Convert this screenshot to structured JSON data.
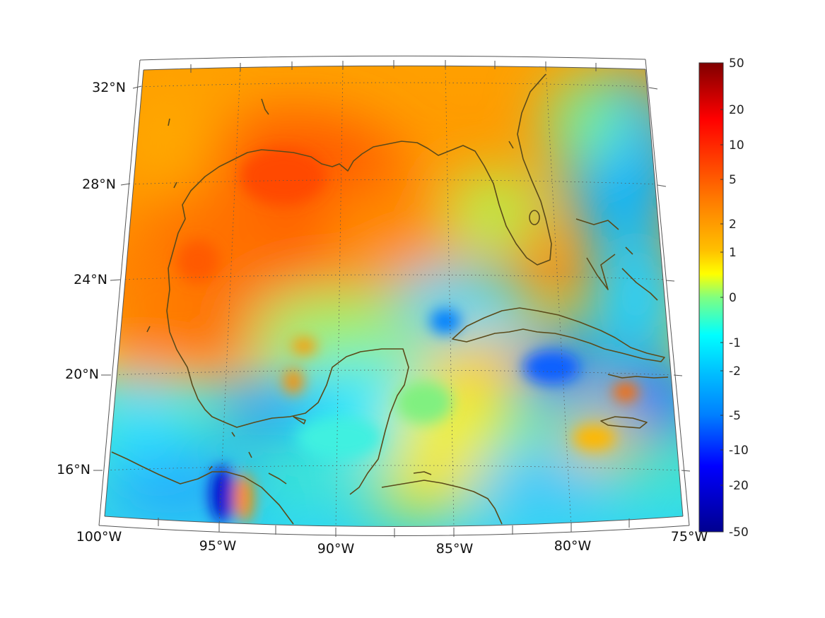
{
  "map": {
    "projection": "conic",
    "lon_range": [
      -100,
      -75
    ],
    "lat_range": [
      14,
      33
    ],
    "coastline_color": "#5b4a1a",
    "grid": "dotted",
    "lon_ticks": [
      "100°W",
      "95°W",
      "90°W",
      "85°W",
      "80°W",
      "75°W"
    ],
    "lat_ticks": [
      "32°N",
      "28°N",
      "24°N",
      "20°N",
      "16°N"
    ],
    "regions_shown": [
      "Gulf of Mexico",
      "Florida",
      "Yucatán Peninsula",
      "Cuba",
      "Bahamas",
      "Jamaica",
      "Central America"
    ]
  },
  "colorbar": {
    "colormap": "jet",
    "ticks": [
      "50",
      "20",
      "10",
      "5",
      "2",
      "1",
      "0",
      "-1",
      "-2",
      "-5",
      "-10",
      "-20",
      "-50"
    ],
    "colors": [
      "#7f0000",
      "#ff0000",
      "#ff8000",
      "#ffff00",
      "#80ff80",
      "#00ffff",
      "#0080ff",
      "#0000ff",
      "#00008f"
    ]
  },
  "chart_data": {
    "type": "heatmap",
    "title": "",
    "xlabel": "",
    "ylabel": "",
    "x_ticks": [
      "100°W",
      "95°W",
      "90°W",
      "85°W",
      "80°W",
      "75°W"
    ],
    "y_ticks": [
      "32°N",
      "28°N",
      "24°N",
      "20°N",
      "16°N"
    ],
    "colorbar_ticks": [
      50,
      20,
      10,
      5,
      2,
      1,
      0,
      -1,
      -2,
      -5,
      -10,
      -20,
      -50
    ],
    "colorbar_range": [
      -50,
      50
    ],
    "dominant_values": [
      {
        "region": "northern and western Gulf of Mexico",
        "approx_value": 5
      },
      {
        "region": "north-central Gulf near Louisiana",
        "approx_value": 8
      },
      {
        "region": "central Gulf / Yucatán Channel",
        "approx_value": 1
      },
      {
        "region": "Bay of Campeche / Pacific near 16°N 95°W",
        "approx_value": -2
      },
      {
        "region": "Gulf of Tehuantepec",
        "approx_value": -10
      },
      {
        "region": "east of Bahamas, Atlantic",
        "approx_value": -2
      },
      {
        "region": "south of Cuba",
        "approx_value": 2
      }
    ]
  }
}
